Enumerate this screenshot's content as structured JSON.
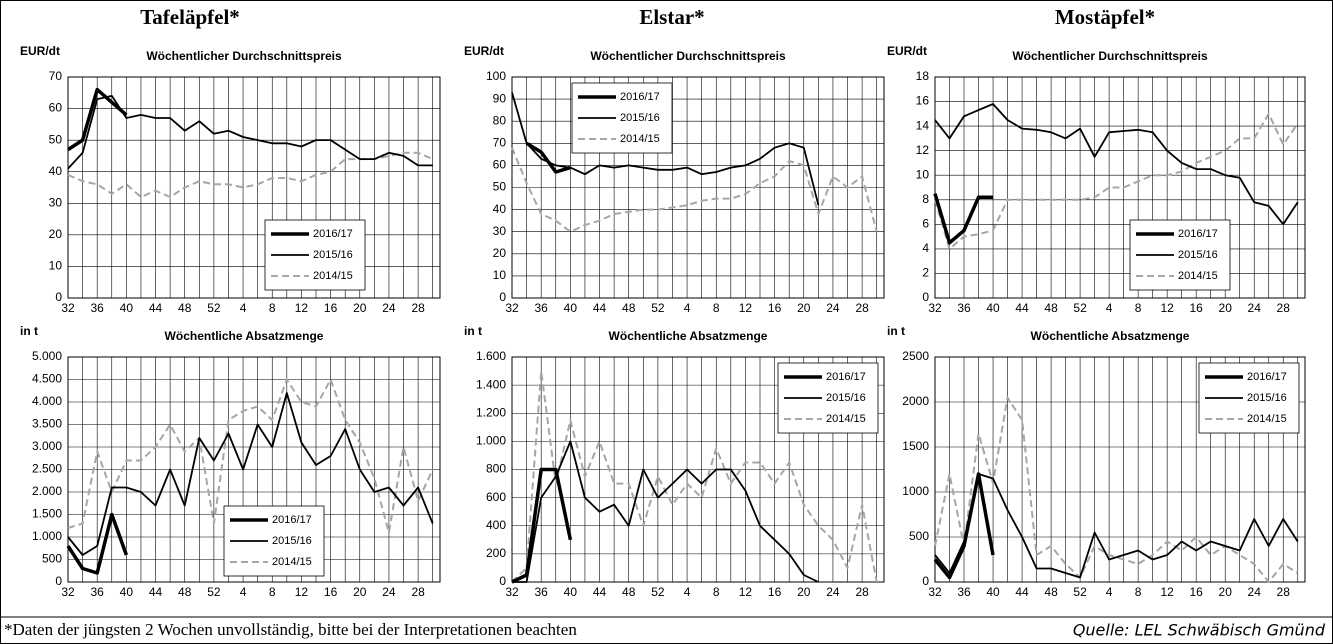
{
  "columns": [
    "Tafeläpfel*",
    "Elstar*",
    "Mostäpfel*"
  ],
  "footnote": "*Daten der jüngsten 2 Wochen unvollständig, bitte bei der Interpretationen beachten",
  "source": "Quelle: LEL Schwäbisch Gmünd",
  "chart_data": [
    {
      "type": "line",
      "title": "Wöchentlicher Durchschnittspreis",
      "ylabel": "EUR/dt",
      "categories": [
        32,
        null,
        36,
        null,
        40,
        null,
        44,
        null,
        48,
        null,
        52,
        null,
        4,
        null,
        8,
        null,
        12,
        null,
        16,
        null,
        20,
        null,
        24,
        null,
        28,
        null
      ],
      "series": [
        {
          "name": "2016/17",
          "color": "#000000",
          "style": "bold",
          "values": [
            47,
            50,
            66,
            62,
            58,
            null,
            null,
            null,
            null,
            null,
            null,
            null,
            null,
            null,
            null,
            null,
            null,
            null,
            null,
            null,
            null,
            null,
            null,
            null,
            null,
            null
          ]
        },
        {
          "name": "2015/16",
          "color": "#000000",
          "style": "solid",
          "values": [
            41,
            46,
            63,
            64,
            57,
            58,
            57,
            57,
            53,
            56,
            52,
            53,
            51,
            50,
            49,
            49,
            48,
            50,
            50,
            47,
            44,
            44,
            46,
            45,
            42,
            42
          ]
        },
        {
          "name": "2014/15",
          "color": "#a6a6a6",
          "style": "dashed",
          "values": [
            39,
            37,
            36,
            33,
            36,
            32,
            34,
            32,
            35,
            37,
            36,
            36,
            35,
            36,
            38,
            38,
            37,
            39,
            40,
            44,
            44,
            44,
            45,
            46,
            46,
            44
          ]
        }
      ],
      "ylim": [
        0,
        70
      ],
      "yticks": [
        0,
        10,
        20,
        30,
        40,
        50,
        60,
        70
      ],
      "grid": true,
      "legend": "lower right"
    },
    {
      "type": "line",
      "title": "Wöchentlicher Durchschnittspreis",
      "ylabel": "EUR/dt",
      "categories": [
        32,
        null,
        36,
        null,
        40,
        null,
        44,
        null,
        48,
        null,
        52,
        null,
        4,
        null,
        8,
        null,
        12,
        null,
        16,
        null,
        20,
        null,
        24,
        null,
        28,
        null
      ],
      "series": [
        {
          "name": "2016/17",
          "color": "#000000",
          "style": "bold",
          "values": [
            null,
            70,
            66,
            57,
            59,
            null,
            null,
            null,
            null,
            null,
            null,
            null,
            null,
            null,
            null,
            null,
            null,
            null,
            null,
            null,
            null,
            null,
            null,
            null,
            null,
            null
          ]
        },
        {
          "name": "2015/16",
          "color": "#000000",
          "style": "solid",
          "values": [
            93,
            70,
            63,
            60,
            59,
            56,
            60,
            59,
            60,
            59,
            58,
            58,
            59,
            56,
            57,
            59,
            60,
            63,
            68,
            70,
            68,
            42,
            null,
            null,
            null,
            null
          ]
        },
        {
          "name": "2014/15",
          "color": "#a6a6a6",
          "style": "dashed",
          "values": [
            68,
            52,
            38,
            35,
            30,
            33,
            35,
            38,
            39,
            40,
            40,
            41,
            42,
            44,
            45,
            45,
            47,
            52,
            55,
            62,
            60,
            38,
            55,
            50,
            55,
            30
          ]
        }
      ],
      "ylim": [
        0,
        100
      ],
      "yticks": [
        0,
        10,
        20,
        30,
        40,
        50,
        60,
        70,
        80,
        90,
        100
      ],
      "grid": true,
      "legend": "upper left"
    },
    {
      "type": "line",
      "title": "Wöchentlicher Durchschnittspreis",
      "ylabel": "EUR/dt",
      "categories": [
        32,
        null,
        36,
        null,
        40,
        null,
        44,
        null,
        48,
        null,
        52,
        null,
        4,
        null,
        8,
        null,
        12,
        null,
        16,
        null,
        20,
        null,
        24,
        null,
        28,
        null
      ],
      "series": [
        {
          "name": "2016/17",
          "color": "#000000",
          "style": "bold",
          "values": [
            8.5,
            4.5,
            5.5,
            8.2,
            8.2,
            null,
            null,
            null,
            null,
            null,
            null,
            null,
            null,
            null,
            null,
            null,
            null,
            null,
            null,
            null,
            null,
            null,
            null,
            null,
            null,
            null
          ]
        },
        {
          "name": "2015/16",
          "color": "#000000",
          "style": "solid",
          "values": [
            14.5,
            13,
            14.8,
            15.3,
            15.8,
            14.5,
            13.8,
            13.7,
            13.5,
            13,
            13.8,
            11.5,
            13.5,
            13.6,
            13.7,
            13.5,
            12,
            11,
            10.5,
            10.5,
            10,
            9.8,
            7.8,
            7.5,
            6,
            7.8
          ]
        },
        {
          "name": "2014/15",
          "color": "#a6a6a6",
          "style": "dashed",
          "values": [
            8,
            4,
            5,
            5.2,
            5.5,
            8,
            8,
            8,
            8,
            8,
            8,
            8.2,
            9,
            9,
            9.5,
            10,
            10,
            10.3,
            11,
            11.5,
            12,
            13,
            13,
            15,
            12.5,
            14.2
          ]
        }
      ],
      "ylim": [
        0,
        18
      ],
      "yticks": [
        0,
        2,
        4,
        6,
        8,
        10,
        12,
        14,
        16,
        18
      ],
      "grid": true,
      "legend": "lower right"
    },
    {
      "type": "line",
      "title": "Wöchentliche Absatzmenge",
      "ylabel": "in t",
      "categories": [
        32,
        null,
        36,
        null,
        40,
        null,
        44,
        null,
        48,
        null,
        52,
        null,
        4,
        null,
        8,
        null,
        12,
        null,
        16,
        null,
        20,
        null,
        24,
        null,
        28,
        null
      ],
      "series": [
        {
          "name": "2016/17",
          "color": "#000000",
          "style": "bold",
          "values": [
            800,
            300,
            200,
            1500,
            600,
            null,
            null,
            null,
            null,
            null,
            null,
            null,
            null,
            null,
            null,
            null,
            null,
            null,
            null,
            null,
            null,
            null,
            null,
            null,
            null,
            null
          ]
        },
        {
          "name": "2015/16",
          "color": "#000000",
          "style": "solid",
          "values": [
            1000,
            600,
            800,
            2100,
            2100,
            2000,
            1700,
            2500,
            1700,
            3200,
            2700,
            3300,
            2500,
            3500,
            3000,
            4200,
            3100,
            2600,
            2800,
            3400,
            2500,
            2000,
            2100,
            1700,
            2100,
            1300
          ]
        },
        {
          "name": "2014/15",
          "color": "#a6a6a6",
          "style": "dashed",
          "values": [
            1200,
            1300,
            2900,
            2000,
            2700,
            2700,
            3000,
            3500,
            2900,
            3200,
            1300,
            3600,
            3800,
            3900,
            3600,
            4500,
            4000,
            3900,
            4500,
            3600,
            3100,
            2300,
            1100,
            3000,
            1800,
            2500
          ]
        }
      ],
      "ylim": [
        0,
        5000
      ],
      "yticks": [
        0,
        500,
        {
          "value": 1000,
          "label": "1.000"
        },
        {
          "value": 1500,
          "label": "1.500"
        },
        {
          "value": 2000,
          "label": "2.000"
        },
        {
          "value": 2500,
          "label": "2.500"
        },
        {
          "value": 3000,
          "label": "3.000"
        },
        {
          "value": 3500,
          "label": "3.500"
        },
        {
          "value": 4000,
          "label": "4.000"
        },
        {
          "value": 4500,
          "label": "4.500"
        },
        {
          "value": 5000,
          "label": "5.000"
        }
      ],
      "grid": true,
      "legend": "lower center"
    },
    {
      "type": "line",
      "title": "Wöchentliche Absatzmenge",
      "ylabel": "in t",
      "categories": [
        32,
        null,
        36,
        null,
        40,
        null,
        44,
        null,
        48,
        null,
        52,
        null,
        4,
        null,
        8,
        null,
        12,
        null,
        16,
        null,
        20,
        null,
        24,
        null,
        28,
        null
      ],
      "series": [
        {
          "name": "2016/17",
          "color": "#000000",
          "style": "bold",
          "values": [
            0,
            50,
            800,
            800,
            300,
            null,
            null,
            null,
            null,
            null,
            null,
            null,
            null,
            null,
            null,
            null,
            null,
            null,
            null,
            null,
            null,
            null,
            null,
            null,
            null,
            null
          ]
        },
        {
          "name": "2015/16",
          "color": "#000000",
          "style": "solid",
          "values": [
            0,
            0,
            600,
            750,
            1000,
            600,
            500,
            550,
            400,
            800,
            600,
            700,
            800,
            700,
            800,
            800,
            650,
            400,
            300,
            200,
            50,
            0,
            null,
            null,
            null,
            null
          ]
        },
        {
          "name": "2014/15",
          "color": "#a6a6a6",
          "style": "dashed",
          "values": [
            0,
            100,
            1500,
            700,
            1150,
            750,
            1000,
            700,
            700,
            400,
            750,
            550,
            700,
            600,
            950,
            700,
            850,
            850,
            700,
            850,
            550,
            400,
            300,
            100,
            550,
            0
          ]
        }
      ],
      "ylim": [
        0,
        1600
      ],
      "yticks": [
        0,
        200,
        400,
        600,
        800,
        {
          "value": 1000,
          "label": "1.000"
        },
        {
          "value": 1200,
          "label": "1.200"
        },
        {
          "value": 1400,
          "label": "1.400"
        },
        {
          "value": 1600,
          "label": "1.600"
        }
      ],
      "grid": true,
      "legend": "upper right"
    },
    {
      "type": "line",
      "title": "Wöchentliche Absatzmenge",
      "ylabel": "in t",
      "categories": [
        32,
        null,
        36,
        null,
        40,
        null,
        44,
        null,
        48,
        null,
        52,
        null,
        4,
        null,
        8,
        null,
        12,
        null,
        16,
        null,
        20,
        null,
        24,
        null,
        28,
        null
      ],
      "series": [
        {
          "name": "2016/17",
          "color": "#000000",
          "style": "bold",
          "values": [
            250,
            50,
            400,
            1200,
            300,
            null,
            null,
            null,
            null,
            null,
            null,
            null,
            null,
            null,
            null,
            null,
            null,
            null,
            null,
            null,
            null,
            null,
            null,
            null,
            null,
            null
          ]
        },
        {
          "name": "2015/16",
          "color": "#000000",
          "style": "solid",
          "values": [
            300,
            100,
            450,
            1200,
            1150,
            800,
            500,
            150,
            150,
            100,
            50,
            550,
            250,
            300,
            350,
            250,
            300,
            450,
            350,
            450,
            400,
            350,
            700,
            400,
            700,
            450
          ]
        },
        {
          "name": "2014/15",
          "color": "#a6a6a6",
          "style": "dashed",
          "values": [
            400,
            1200,
            400,
            1650,
            1100,
            2050,
            1800,
            300,
            400,
            200,
            50,
            400,
            300,
            250,
            200,
            300,
            450,
            350,
            500,
            300,
            400,
            300,
            200,
            0,
            200,
            100
          ]
        }
      ],
      "ylim": [
        0,
        2500
      ],
      "yticks": [
        0,
        500,
        1000,
        1500,
        2000,
        2500
      ],
      "grid": true,
      "legend": "upper right"
    }
  ]
}
